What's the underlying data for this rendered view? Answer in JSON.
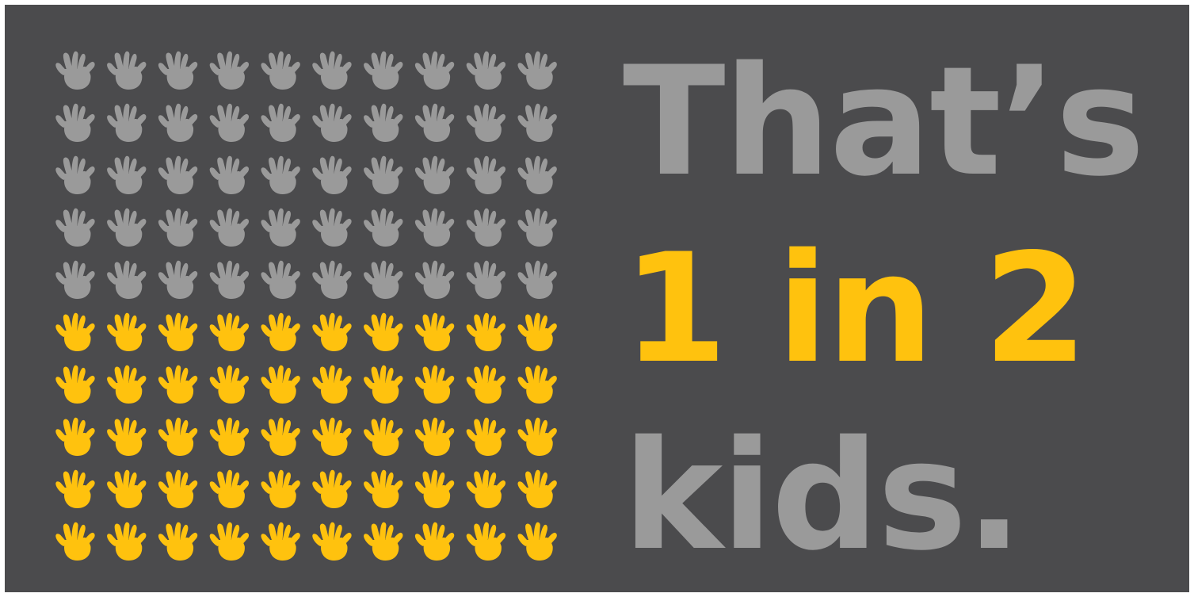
{
  "colors": {
    "background": "#4b4b4d",
    "muted": "#9a9a9a",
    "highlight": "#ffc20e"
  },
  "headline": {
    "line1": "That’s",
    "line2": "1 in 2",
    "line3": "kids."
  },
  "grid": {
    "rows": 10,
    "cols": 10,
    "highlighted_fraction": 0.5,
    "icon": "hand-icon"
  }
}
